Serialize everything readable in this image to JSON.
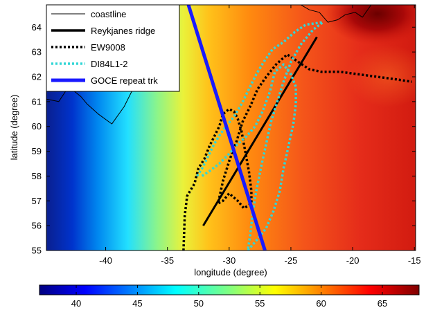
{
  "figure": {
    "xlabel": "longitude (degree)",
    "ylabel": "latitude (degree)",
    "xlim": [
      -44.8,
      -14.9
    ],
    "ylim": [
      55,
      64.9
    ],
    "xticks": [
      -40,
      -35,
      -30,
      -25,
      -20,
      -15
    ],
    "yticks": [
      55,
      56,
      57,
      58,
      59,
      60,
      61,
      62,
      63,
      64
    ],
    "colorbar": {
      "range": [
        37,
        68
      ],
      "ticks": [
        40,
        45,
        50,
        55,
        60,
        65
      ],
      "colormap": "jet"
    },
    "legend": {
      "placement": "top-left",
      "entries": [
        {
          "label": "coastline",
          "color": "#000000",
          "style": "solid-thin"
        },
        {
          "label": "Reykjanes ridge",
          "color": "#000000",
          "style": "solid-thick"
        },
        {
          "label": "EW9008",
          "color": "#000000",
          "style": "dotted"
        },
        {
          "label": "DI84L1-2",
          "color": "#33d6d6",
          "style": "dotted"
        },
        {
          "label": "GOCE repeat trk",
          "color": "#1a1aff",
          "style": "solid-thick"
        }
      ]
    }
  },
  "chart_data": {
    "type": "map",
    "colorbar_range": [
      37,
      68
    ],
    "field_description_units": "degree",
    "series": [
      {
        "name": "coastline",
        "points": [
          [
            -44.8,
            61.1
          ],
          [
            -43.8,
            61.0
          ],
          [
            -43.0,
            61.6
          ],
          [
            -42.0,
            61.2
          ],
          [
            -41.5,
            60.9
          ],
          [
            -40.6,
            60.5
          ],
          [
            -39.5,
            60.1
          ],
          [
            -38.5,
            60.8
          ],
          [
            -37.8,
            61.5
          ],
          [
            -37.4,
            62.3
          ],
          [
            -36.9,
            63.0
          ],
          [
            -36.3,
            63.7
          ],
          [
            -35.6,
            64.4
          ],
          [
            -35.0,
            64.9
          ]
        ]
      },
      {
        "name": "Iceland coast",
        "points": [
          [
            -24.2,
            64.9
          ],
          [
            -23.5,
            64.7
          ],
          [
            -22.7,
            64.6
          ],
          [
            -22.0,
            64.2
          ],
          [
            -21.2,
            64.3
          ],
          [
            -20.6,
            64.5
          ],
          [
            -19.8,
            64.6
          ],
          [
            -19.2,
            64.4
          ],
          [
            -18.5,
            64.9
          ]
        ]
      },
      {
        "name": "Reykjanes ridge",
        "points": [
          [
            -32.1,
            56.0
          ],
          [
            -22.9,
            63.6
          ]
        ]
      },
      {
        "name": "EW9008",
        "points": [
          [
            -33.7,
            55.0
          ],
          [
            -33.6,
            56.4
          ],
          [
            -33.4,
            57.2
          ],
          [
            -32.8,
            57.7
          ],
          [
            -32.5,
            58.3
          ],
          [
            -32.0,
            58.7
          ],
          [
            -31.6,
            59.2
          ],
          [
            -31.2,
            59.6
          ],
          [
            -30.8,
            60.0
          ],
          [
            -30.5,
            60.5
          ],
          [
            -30.0,
            60.7
          ],
          [
            -29.6,
            60.6
          ],
          [
            -29.3,
            60.3
          ],
          [
            -29.0,
            59.8
          ],
          [
            -28.7,
            59.0
          ],
          [
            -28.4,
            58.2
          ],
          [
            -28.2,
            57.4
          ],
          [
            -28.2,
            56.9
          ],
          [
            -28.8,
            56.7
          ],
          [
            -29.3,
            57.0
          ],
          [
            -30.0,
            57.3
          ],
          [
            -30.5,
            57.0
          ],
          [
            -30.9,
            56.9
          ],
          [
            -30.5,
            57.8
          ],
          [
            -30.0,
            58.6
          ],
          [
            -29.4,
            59.4
          ],
          [
            -28.9,
            60.2
          ],
          [
            -28.3,
            60.8
          ],
          [
            -27.7,
            61.5
          ],
          [
            -27.0,
            62.0
          ],
          [
            -26.2,
            62.5
          ],
          [
            -25.3,
            62.9
          ],
          [
            -24.4,
            62.6
          ],
          [
            -23.5,
            62.3
          ],
          [
            -22.5,
            62.2
          ],
          [
            -21.0,
            62.2
          ],
          [
            -19.5,
            62.1
          ],
          [
            -18.0,
            62.0
          ],
          [
            -16.5,
            61.9
          ],
          [
            -15.2,
            61.8
          ]
        ]
      },
      {
        "name": "DI84L1-2",
        "points": [
          [
            -32.6,
            58.0
          ],
          [
            -32.2,
            58.3
          ],
          [
            -31.7,
            58.8
          ],
          [
            -31.2,
            59.3
          ],
          [
            -30.7,
            59.7
          ],
          [
            -30.1,
            60.1
          ],
          [
            -29.6,
            60.4
          ],
          [
            -29.0,
            60.9
          ],
          [
            -28.4,
            61.5
          ],
          [
            -27.8,
            62.1
          ],
          [
            -27.2,
            62.6
          ],
          [
            -26.5,
            63.1
          ],
          [
            -25.6,
            63.4
          ],
          [
            -24.7,
            63.8
          ],
          [
            -23.8,
            64.1
          ],
          [
            -22.4,
            64.2
          ],
          [
            -23.2,
            63.9
          ],
          [
            -24.2,
            63.3
          ],
          [
            -25.0,
            62.6
          ],
          [
            -25.6,
            61.8
          ],
          [
            -26.1,
            61.0
          ],
          [
            -26.6,
            60.2
          ],
          [
            -27.0,
            59.3
          ],
          [
            -27.4,
            58.4
          ],
          [
            -27.8,
            57.4
          ],
          [
            -28.1,
            56.5
          ],
          [
            -28.3,
            55.6
          ],
          [
            -28.5,
            55.0
          ],
          [
            -27.8,
            55.4
          ],
          [
            -27.0,
            55.9
          ],
          [
            -26.4,
            56.6
          ],
          [
            -25.9,
            57.4
          ],
          [
            -25.6,
            58.3
          ],
          [
            -25.2,
            59.2
          ],
          [
            -24.8,
            60.1
          ],
          [
            -24.6,
            60.9
          ],
          [
            -24.6,
            61.6
          ],
          [
            -25.0,
            62.1
          ],
          [
            -25.6,
            62.5
          ],
          [
            -26.3,
            62.2
          ],
          [
            -26.7,
            61.4
          ],
          [
            -27.3,
            60.6
          ],
          [
            -27.9,
            60.0
          ],
          [
            -28.6,
            59.6
          ],
          [
            -29.3,
            59.3
          ],
          [
            -30.0,
            58.9
          ],
          [
            -30.8,
            58.5
          ],
          [
            -31.6,
            58.2
          ],
          [
            -32.2,
            58.0
          ]
        ]
      },
      {
        "name": "GOCE repeat trk",
        "points": [
          [
            -33.3,
            64.9
          ],
          [
            -27.1,
            55.0
          ]
        ]
      }
    ]
  }
}
